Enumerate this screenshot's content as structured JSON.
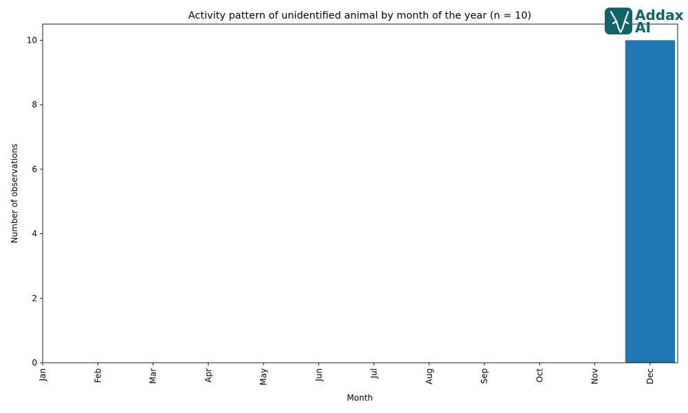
{
  "chart_data": {
    "type": "bar",
    "title": "Activity pattern of unidentified animal by month of the year (n = 10)",
    "xlabel": "Month",
    "ylabel": "Number of observations",
    "categories": [
      "Jan",
      "Feb",
      "Mar",
      "Apr",
      "May",
      "Jun",
      "Jul",
      "Aug",
      "Sep",
      "Oct",
      "Nov",
      "Dec"
    ],
    "values": [
      0,
      0,
      0,
      0,
      0,
      0,
      0,
      0,
      0,
      0,
      0,
      10
    ],
    "ylim": [
      0,
      10.5
    ],
    "yticks": [
      0,
      2,
      4,
      6,
      8,
      10
    ],
    "bar_color": "#1f77b4",
    "grid": false
  },
  "logo": {
    "line1": "Addax",
    "line2": "AI",
    "color": "#0e6468",
    "icon": "antelope-head-icon"
  }
}
